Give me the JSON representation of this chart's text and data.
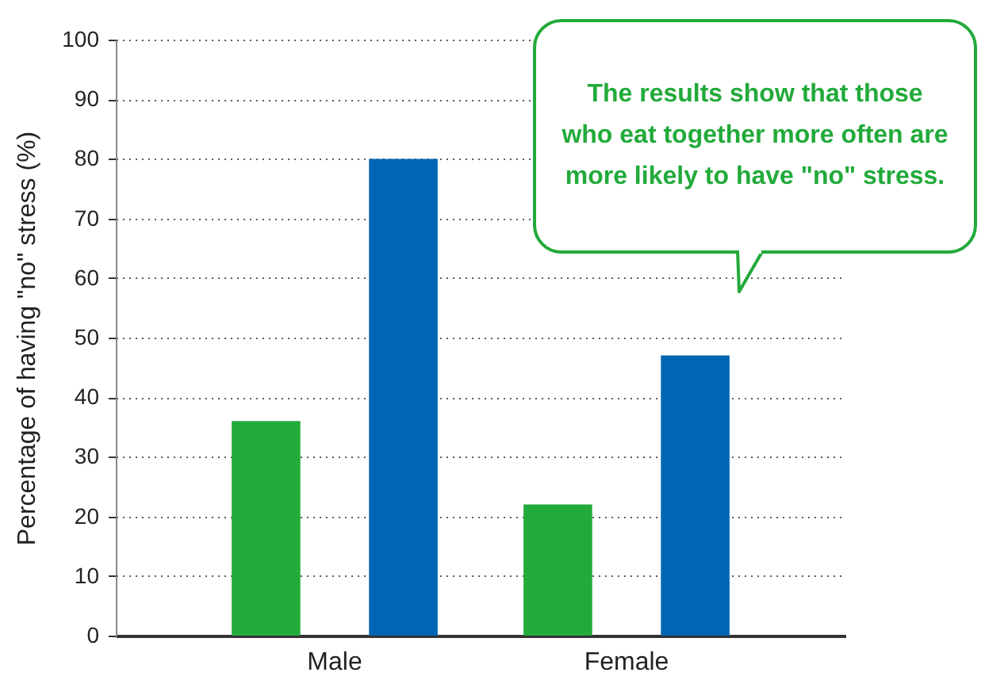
{
  "chart_data": {
    "type": "bar",
    "ylabel": "Percentage of having \"no\" stress (%)",
    "categories": [
      "Male",
      "Female"
    ],
    "series": [
      {
        "color": "#22aa3a",
        "values": [
          36,
          22
        ]
      },
      {
        "color": "#0066b3",
        "values": [
          80,
          47
        ]
      }
    ],
    "ylim": [
      0,
      100
    ],
    "yticks": [
      0,
      10,
      20,
      30,
      40,
      50,
      60,
      70,
      80,
      90,
      100
    ],
    "grid": "y",
    "annotations": [
      "The results show that those who eat together more often are more likely to have \"no\" stress."
    ]
  }
}
